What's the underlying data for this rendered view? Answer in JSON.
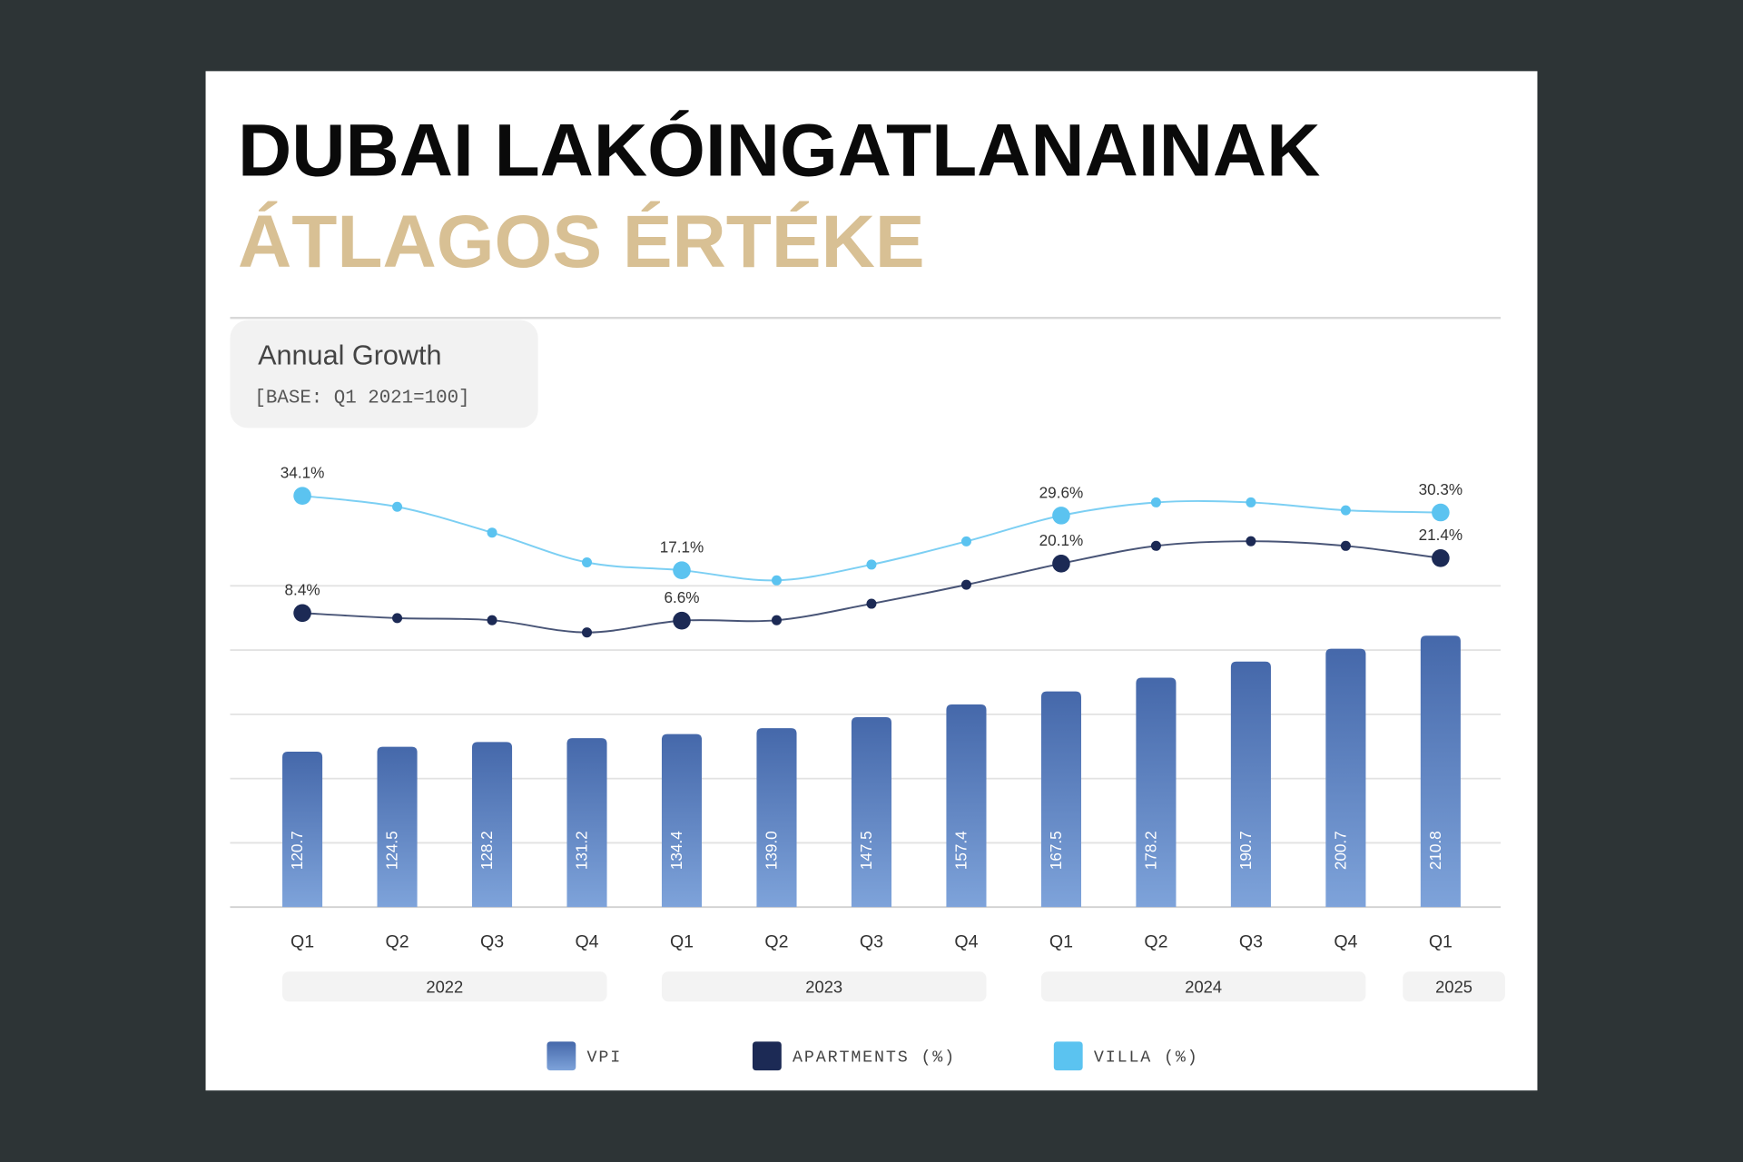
{
  "chart_data": {
    "type": "bar",
    "title": "DUBAI LAKÓINGATLANAINAK",
    "title_line2": "ÁTLAGOS ÉRTÉKE",
    "panel_title": "Annual Growth",
    "panel_note": "[BASE: Q1 2021=100]",
    "categories": [
      "Q1",
      "Q2",
      "Q3",
      "Q4",
      "Q1",
      "Q2",
      "Q3",
      "Q4",
      "Q1",
      "Q2",
      "Q3",
      "Q4",
      "Q1"
    ],
    "groups": [
      "2022",
      "2023",
      "2024",
      "2025"
    ],
    "series": [
      {
        "name": "VPI",
        "type": "bar",
        "color": "#4a6fae",
        "values": [
          120.7,
          124.5,
          128.2,
          131.2,
          134.4,
          139.0,
          147.5,
          157.4,
          167.5,
          178.2,
          190.7,
          200.7,
          210.8
        ],
        "value_labels": [
          "120.7",
          "124.5",
          "128.2",
          "131.2",
          "134.4",
          "139.0",
          "147.5",
          "157.4",
          "167.5",
          "178.2",
          "190.7",
          "200.7",
          "210.8"
        ]
      },
      {
        "name": "APARTMENTS (%)",
        "type": "line",
        "color": "#1c2a55",
        "values": [
          8.4,
          7.2,
          6.7,
          3.8,
          6.6,
          6.7,
          10.6,
          15.1,
          20.1,
          24.3,
          25.4,
          24.3,
          21.4
        ],
        "value_labels": [
          "8.4%",
          null,
          null,
          null,
          "6.6%",
          null,
          null,
          null,
          "20.1%",
          null,
          null,
          null,
          "21.4%"
        ]
      },
      {
        "name": "VILLA (%)",
        "type": "line",
        "color": "#5bc3f0",
        "values": [
          34.1,
          31.6,
          25.7,
          18.9,
          17.1,
          14.8,
          18.4,
          23.7,
          29.6,
          32.6,
          32.6,
          30.8,
          30.3
        ],
        "value_labels": [
          "34.1%",
          null,
          null,
          null,
          "17.1%",
          null,
          null,
          null,
          "29.6%",
          null,
          null,
          null,
          "30.3%"
        ]
      }
    ]
  }
}
